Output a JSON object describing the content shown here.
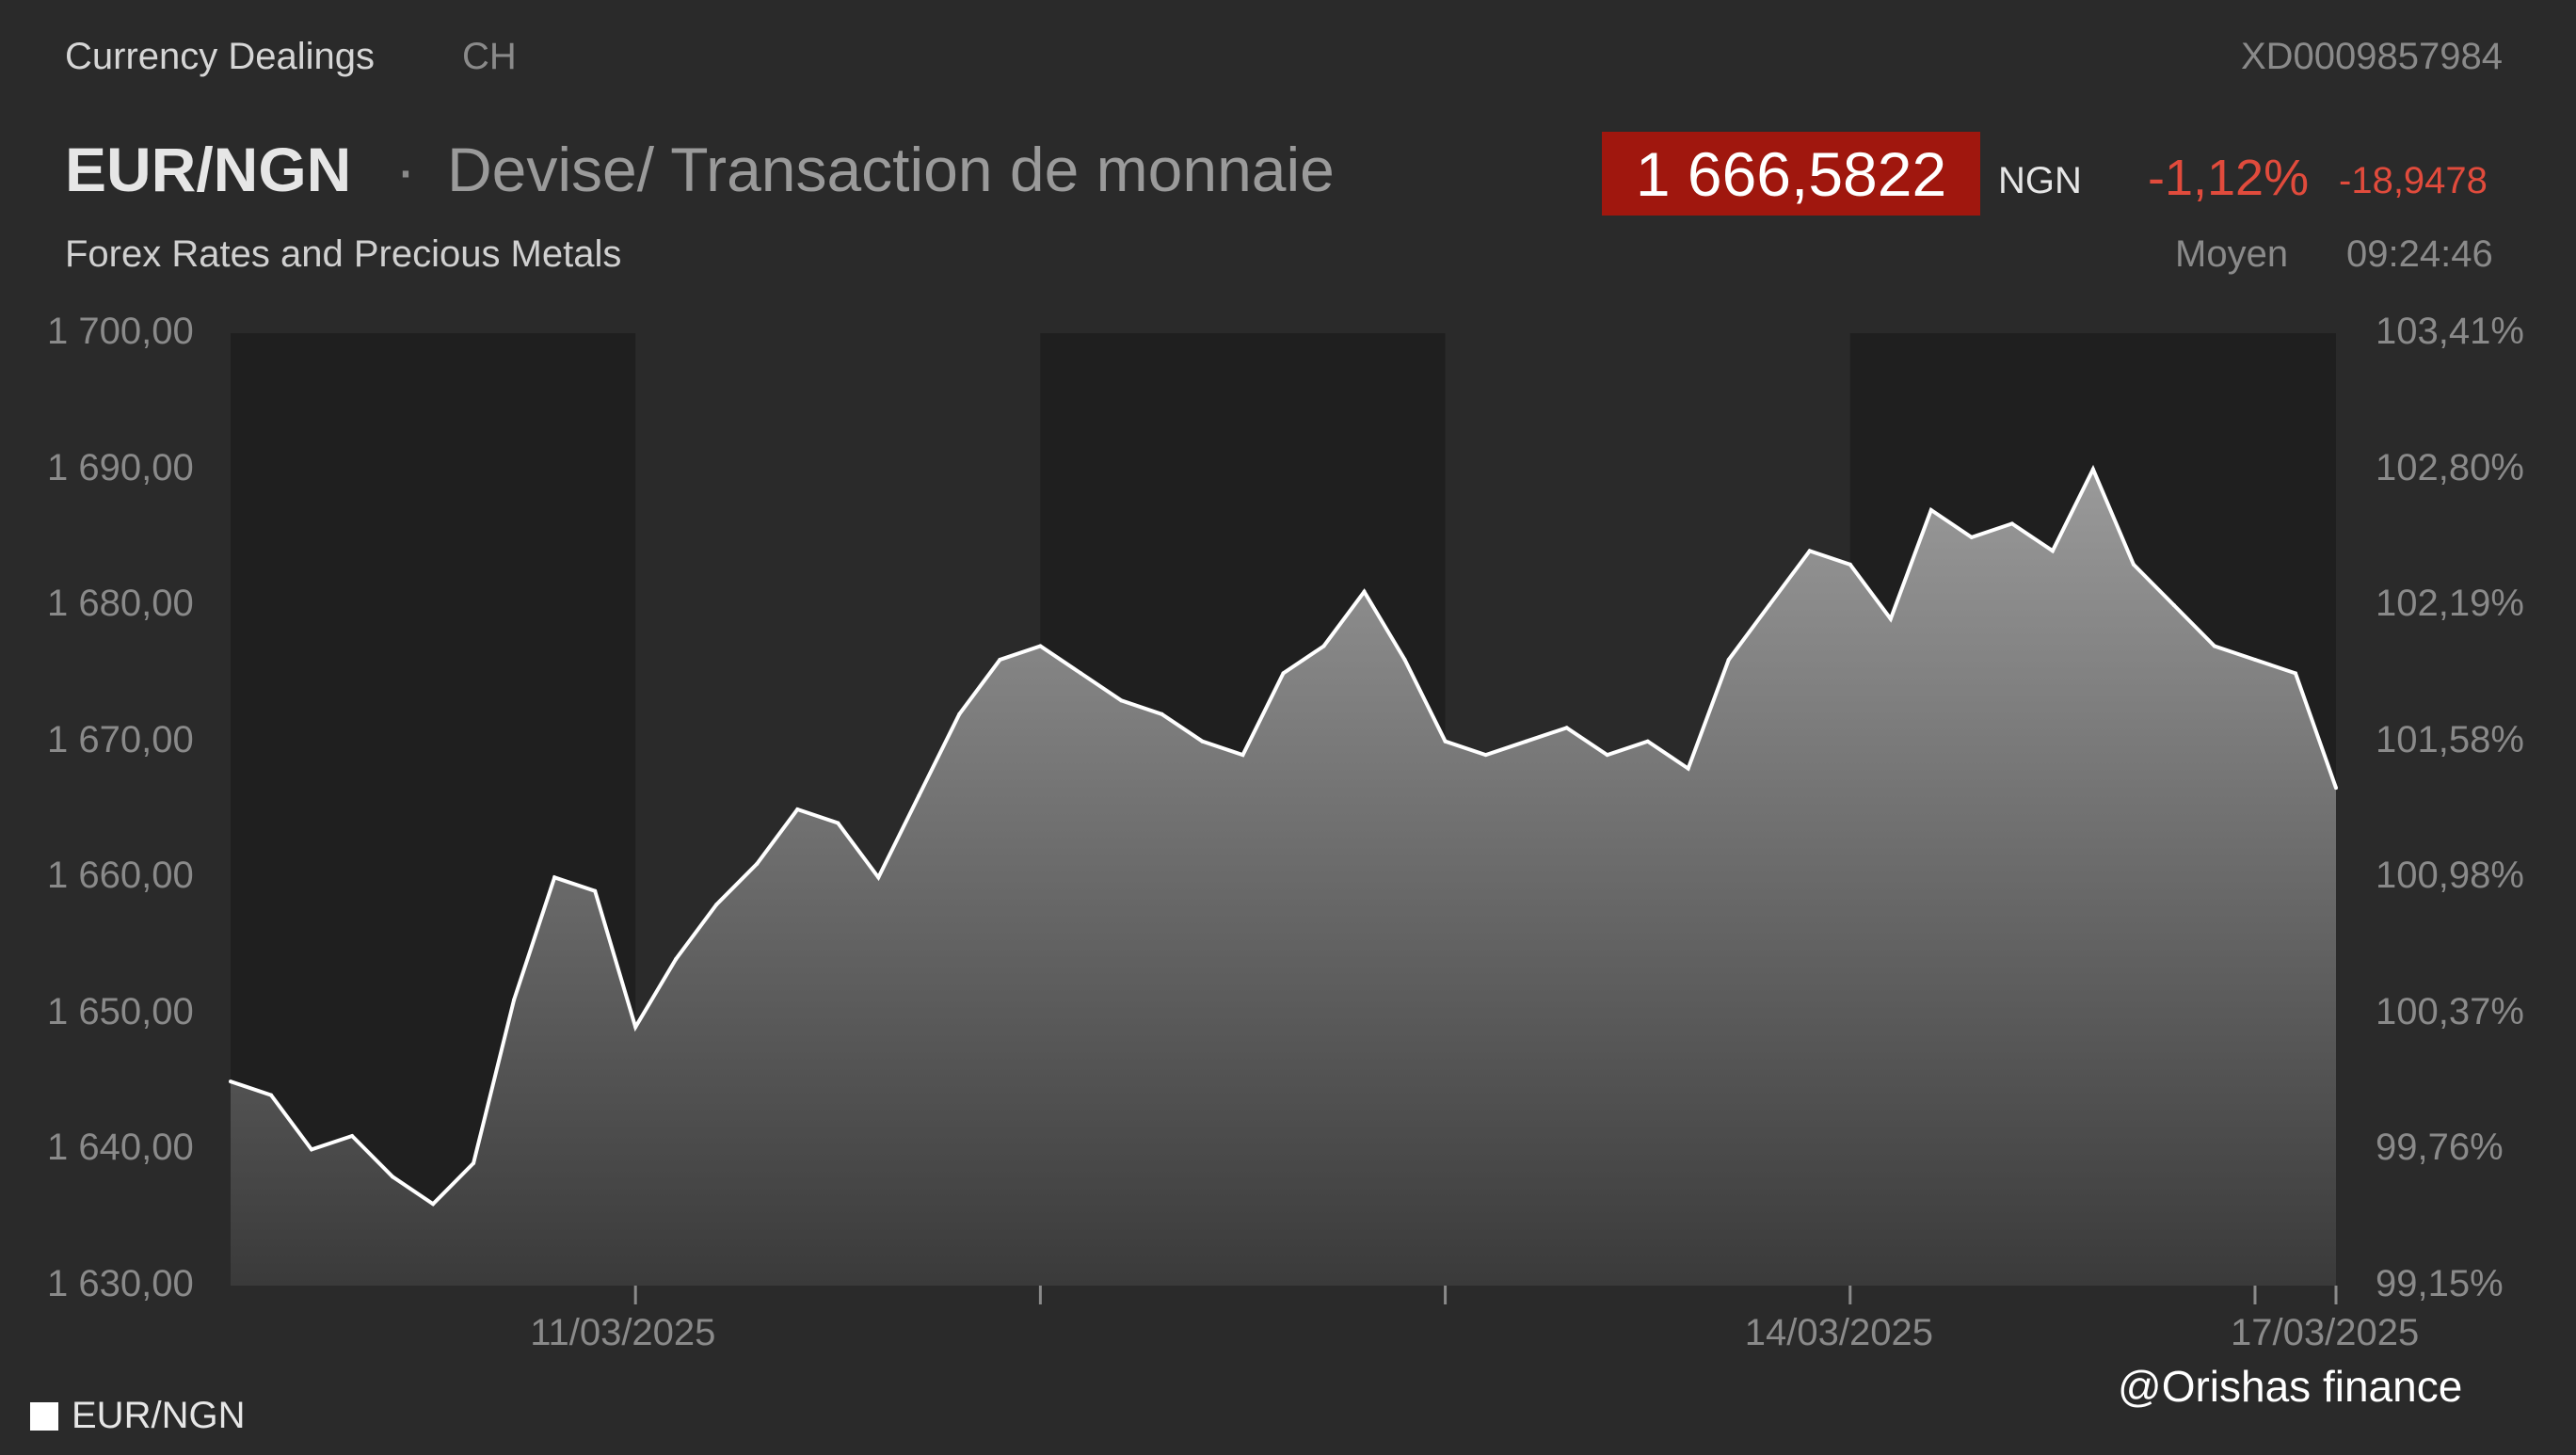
{
  "header": {
    "source": "Currency Dealings",
    "exchange": "CH",
    "isin": "XD0009857984",
    "symbol": "EUR/NGN",
    "separator": "·",
    "description": "Devise/ Transaction de monnaie",
    "subtitle": "Forex Rates and Precious Metals",
    "price": "1 666,5822",
    "currency": "NGN",
    "change_pct": "-1,12%",
    "change_abs": "-18,9478",
    "mode": "Moyen",
    "time": "09:24:46"
  },
  "colors": {
    "background": "#2a2a2a",
    "night_band": "#1f1f1f",
    "line": "#ffffff",
    "negative": "#e14b3c",
    "price_box": "#a0170e"
  },
  "legend": {
    "label": "EUR/NGN"
  },
  "watermark": "@Orishas finance",
  "chart_data": {
    "type": "area",
    "series": [
      {
        "name": "EUR/NGN",
        "x": [
          0,
          0.1,
          0.2,
          0.3,
          0.4,
          0.5,
          0.6,
          0.7,
          0.8,
          0.9,
          1.0,
          1.1,
          1.2,
          1.3,
          1.4,
          1.5,
          1.6,
          1.7,
          1.8,
          1.9,
          2.0,
          2.1,
          2.2,
          2.3,
          2.4,
          2.5,
          2.6,
          2.7,
          2.8,
          2.9,
          3.0,
          3.1,
          3.2,
          3.3,
          3.4,
          3.5,
          3.6,
          3.7,
          3.8,
          3.9,
          4.0,
          4.1,
          4.2,
          4.3,
          4.4,
          4.5,
          4.6,
          4.7,
          4.8,
          4.9,
          5.0,
          5.1,
          5.2
        ],
        "values": [
          1645,
          1644,
          1640,
          1641,
          1638,
          1636,
          1639,
          1651,
          1660,
          1659,
          1649,
          1654,
          1658,
          1661,
          1665,
          1664,
          1660,
          1666,
          1672,
          1676,
          1677,
          1675,
          1673,
          1672,
          1670,
          1669,
          1675,
          1677,
          1681,
          1676,
          1670,
          1669,
          1670,
          1671,
          1669,
          1670,
          1668,
          1676,
          1680,
          1684,
          1683,
          1679,
          1687,
          1685,
          1686,
          1684,
          1690,
          1683,
          1680,
          1677,
          1676,
          1675,
          1666.58
        ]
      }
    ],
    "x_tick_labels": [
      "11/03/2025",
      "14/03/2025",
      "17/03/2025"
    ],
    "x_tick_positions": [
      1,
      4,
      5.2
    ],
    "y_left": {
      "ticks": [
        "1 700,00",
        "1 690,00",
        "1 680,00",
        "1 670,00",
        "1 660,00",
        "1 650,00",
        "1 640,00",
        "1 630,00"
      ],
      "range": [
        1630,
        1700
      ]
    },
    "y_right": {
      "ticks": [
        "103,41%",
        "102,80%",
        "102,19%",
        "101,58%",
        "100,98%",
        "100,37%",
        "99,76%",
        "99,15%"
      ]
    },
    "grid": false,
    "legend_position": "bottom-left"
  }
}
